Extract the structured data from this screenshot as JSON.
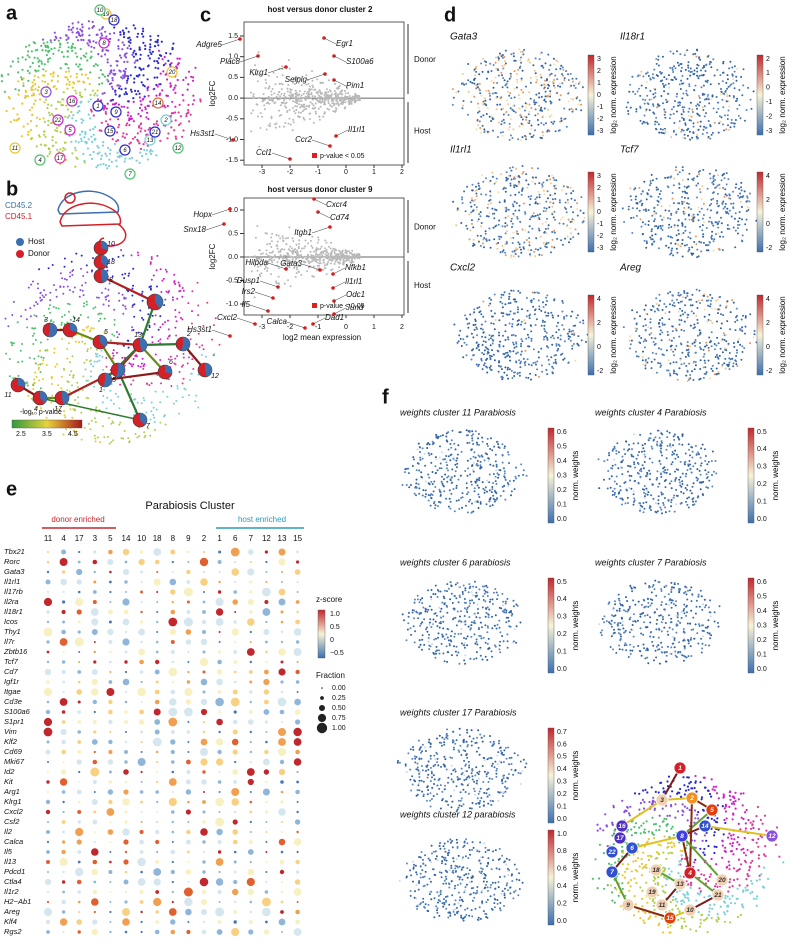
{
  "panel_a": {
    "letter": "a",
    "clusters": [
      "19",
      "10",
      "18",
      "8",
      "20",
      "3",
      "16",
      "22",
      "1",
      "9",
      "5",
      "15",
      "14",
      "2",
      "13",
      "21",
      "12",
      "11",
      "4",
      "17",
      "6",
      "7"
    ]
  },
  "panel_b": {
    "letter": "b",
    "mouse_labels": [
      "CD45.2",
      "CD45.1"
    ],
    "legend": [
      "Host",
      "Donor"
    ],
    "nodes": [
      "10",
      "18",
      "8",
      "3",
      "14",
      "5",
      "13",
      "2",
      "11",
      "4",
      "17",
      "15",
      "6",
      "7",
      "12",
      "1"
    ],
    "pvalue_title": "-log₁₀ p-value",
    "pvalue_ticks": [
      "2.5",
      "3.5",
      "4.5"
    ]
  },
  "panel_c": {
    "letter": "c",
    "plots": [
      {
        "title": "host versus donor cluster 2",
        "ylabel": "log2FC",
        "yticks": [
          "1.5",
          "1.0",
          "0.5",
          "0.0",
          "-0.5",
          "-1.0",
          "-1.5"
        ],
        "xticks": [
          "-3",
          "-2",
          "-1",
          "0",
          "1",
          "2"
        ],
        "groups": [
          "Donor",
          "Host"
        ],
        "genes": [
          "Adgre5",
          "Egr1",
          "Plac8",
          "Klrg1",
          "S100a6",
          "Selplg",
          "Pim1",
          "Il1rl1",
          "Ccr2",
          "Hs3st1",
          "Ccl1"
        ],
        "legend": "p-value < 0.05"
      },
      {
        "title": "host versus donor cluster 9",
        "ylabel": "log2FC",
        "xlabel": "log2 mean expression",
        "yticks": [
          "1.0",
          "0.5",
          "0.0",
          "-0.5",
          "-1.0"
        ],
        "xticks": [
          "-3",
          "-2",
          "-1",
          "0",
          "1",
          "2"
        ],
        "groups": [
          "Donor",
          "Host"
        ],
        "genes": [
          "Cxcr4",
          "Hopx",
          "Cd74",
          "Snx18",
          "Itgb1",
          "Gata3",
          "Nfkb1",
          "Hilpda",
          "Il1rl1",
          "Dusp1",
          "Irs2",
          "Odc1",
          "Il5",
          "Jund",
          "Cxcl2",
          "Calca",
          "Dad1",
          "Hs3st1"
        ],
        "legend": "p-value < 0.05"
      }
    ]
  },
  "panel_d": {
    "letter": "d",
    "colorbar_label": "log₂ norm. expression",
    "plots": [
      {
        "gene": "Gata3",
        "ticks": [
          "3",
          "2",
          "1",
          "0",
          "-1",
          "-2",
          "-3"
        ]
      },
      {
        "gene": "Il18r1",
        "ticks": [
          "2",
          "1",
          "0",
          "-1",
          "-2",
          "-3"
        ]
      },
      {
        "gene": "Il1rl1",
        "ticks": [
          "3",
          "2",
          "1",
          "0",
          "-1",
          "-2",
          "-3"
        ]
      },
      {
        "gene": "Tcf7",
        "ticks": [
          "4",
          "2",
          "0",
          "-2"
        ]
      },
      {
        "gene": "Cxcl2",
        "ticks": [
          "4",
          "2",
          "0",
          "-2"
        ]
      },
      {
        "gene": "Areg",
        "ticks": [
          "4",
          "2",
          "0",
          "-2"
        ]
      }
    ]
  },
  "panel_e": {
    "letter": "e",
    "title": "Parabiosis Cluster",
    "donor_label": "donor enriched",
    "host_label": "host enriched",
    "clusters": [
      "11",
      "4",
      "17",
      "3",
      "5",
      "14",
      "10",
      "18",
      "8",
      "9",
      "2",
      "1",
      "6",
      "7",
      "12",
      "13",
      "15"
    ],
    "genes": [
      "Tbx21",
      "Rorc",
      "Gata3",
      "Il1rl1",
      "Il17rb",
      "Il2ra",
      "Il18r1",
      "Icos",
      "Thy1",
      "Il7r",
      "Zbtb16",
      "Tcf7",
      "Cd7",
      "Igf1r",
      "Itgae",
      "Cd3e",
      "S100a6",
      "S1pr1",
      "Vim",
      "Klf2",
      "Cd69",
      "Mki67",
      "Id2",
      "Kit",
      "Arg1",
      "Klrg1",
      "Cxcl2",
      "Csf2",
      "Il2",
      "Calca",
      "Il5",
      "Il13",
      "Pdcd1",
      "Ctla4",
      "Il1r2",
      "H2−Ab1",
      "Areg",
      "Klf4",
      "Rgs2"
    ],
    "zscore_title": "z-score",
    "zscore_ticks": [
      "1.0",
      "0.5",
      "0",
      "−0.5"
    ],
    "fraction_title": "Fraction",
    "fraction_ticks": [
      "0.00",
      "0.25",
      "0.50",
      "0.75",
      "1.00"
    ]
  },
  "panel_f": {
    "letter": "f",
    "colorbar_label": "norm. weights",
    "plots": [
      {
        "title": "weights cluster 11 Parabiosis",
        "ticks": [
          "0.6",
          "0.5",
          "0.4",
          "0.3",
          "0.2",
          "0.1",
          "0.0"
        ]
      },
      {
        "title": "weights cluster 4 Parabiosis",
        "ticks": [
          "0.5",
          "0.4",
          "0.3",
          "0.2",
          "0.1",
          "0.0"
        ]
      },
      {
        "title": "weights cluster 6 parabiosis",
        "ticks": [
          "0.5",
          "0.4",
          "0.3",
          "0.2",
          "0.1",
          "0.0"
        ]
      },
      {
        "title": "weights cluster 7 Parabiosis",
        "ticks": [
          "0.6",
          "0.5",
          "0.4",
          "0.3",
          "0.2",
          "0.1",
          "0.0"
        ]
      },
      {
        "title": "weights cluster 17 Parabiosis",
        "ticks": [
          "0.7",
          "0.6",
          "0.5",
          "0.4",
          "0.3",
          "0.2",
          "0.1",
          "0.0"
        ]
      },
      {
        "title": "weights cluster 12 parabiosis",
        "ticks": [
          "1.0",
          "0.8",
          "0.6",
          "0.4",
          "0.2",
          "0.0"
        ]
      }
    ],
    "network_nodes": [
      "1",
      "3",
      "2",
      "5",
      "14",
      "12",
      "8",
      "16",
      "22",
      "6",
      "17",
      "7",
      "18",
      "4",
      "13",
      "20",
      "21",
      "19",
      "10",
      "9",
      "11",
      "15"
    ]
  }
}
